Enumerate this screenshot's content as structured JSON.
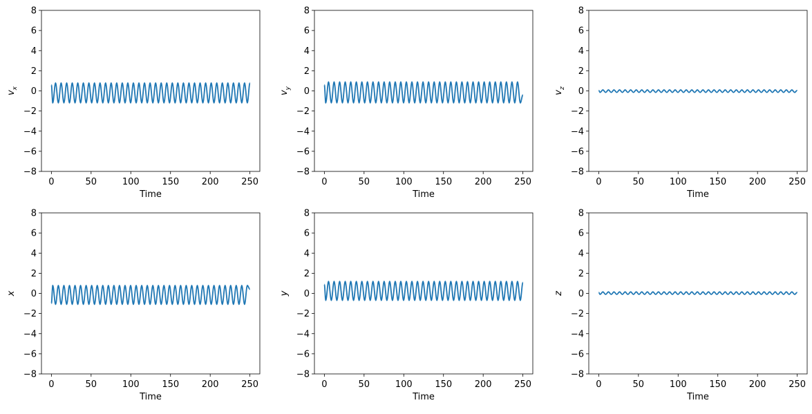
{
  "chart_data": [
    {
      "type": "line",
      "xlabel": "Time",
      "ylabel": "v",
      "ylabel_sub": "x",
      "x": [
        0,
        1.75,
        5.25,
        8.75,
        12.25,
        15.75,
        19.25,
        22.75,
        26.25,
        29.75,
        33.25,
        36.75,
        40.25,
        43.75,
        47.25,
        50.75,
        54.25,
        57.75,
        61.25,
        64.75,
        68.25,
        71.75,
        75.25,
        78.75,
        82.25,
        85.75,
        89.25,
        92.75,
        96.25,
        99.75,
        103.25,
        106.75,
        110.25,
        113.75,
        117.25,
        120.75,
        124.25,
        127.75,
        131.25,
        134.75,
        138.25,
        141.75,
        145.25,
        148.75,
        152.25,
        155.75,
        159.25,
        162.75,
        166.25,
        169.75,
        173.25,
        176.75,
        180.25,
        183.75,
        187.25,
        190.75,
        194.25,
        197.75,
        201.25,
        204.75,
        208.25,
        211.75,
        215.25,
        218.75,
        222.25,
        225.75,
        229.25,
        232.75,
        236.25,
        239.75,
        243.25,
        246.75,
        250
      ],
      "series": [
        {
          "color": "#1f77b4",
          "values": [
            0.6,
            -1.2,
            0.8,
            -1.2,
            0.8,
            -1.2,
            0.8,
            -1.2,
            0.8,
            -1.2,
            0.8,
            -1.2,
            0.8,
            -1.2,
            0.8,
            -1.2,
            0.8,
            -1.2,
            0.8,
            -1.2,
            0.8,
            -1.2,
            0.8,
            -1.2,
            0.8,
            -1.2,
            0.8,
            -1.2,
            0.8,
            -1.2,
            0.8,
            -1.2,
            0.8,
            -1.2,
            0.8,
            -1.2,
            0.8,
            -1.2,
            0.8,
            -1.2,
            0.8,
            -1.2,
            0.8,
            -1.2,
            0.8,
            -1.2,
            0.8,
            -1.2,
            0.8,
            -1.2,
            0.8,
            -1.2,
            0.8,
            -1.2,
            0.8,
            -1.2,
            0.8,
            -1.2,
            0.8,
            -1.2,
            0.8,
            -1.2,
            0.8,
            -1.2,
            0.8,
            -1.2,
            0.8,
            -1.2,
            0.8,
            -1.2,
            0.8,
            -1.2,
            0.8
          ]
        }
      ],
      "xlim": [
        -12.5,
        262.5
      ],
      "xticks": [
        0,
        50,
        100,
        150,
        200,
        250
      ],
      "ylim": [
        -8,
        8
      ],
      "yticks": [
        {
          "value": -8,
          "label": "−8"
        },
        {
          "value": -6,
          "label": "−6"
        },
        {
          "value": -4,
          "label": "−4"
        },
        {
          "value": -2,
          "label": "−2"
        },
        0,
        2,
        4,
        6,
        8
      ]
    },
    {
      "type": "line",
      "xlabel": "Time",
      "ylabel": "v",
      "ylabel_sub": "y",
      "x": [
        0,
        1.75,
        5.25,
        8.75,
        12.25,
        15.75,
        19.25,
        22.75,
        26.25,
        29.75,
        33.25,
        36.75,
        40.25,
        43.75,
        47.25,
        50.75,
        54.25,
        57.75,
        61.25,
        64.75,
        68.25,
        71.75,
        75.25,
        78.75,
        82.25,
        85.75,
        89.25,
        92.75,
        96.25,
        99.75,
        103.25,
        106.75,
        110.25,
        113.75,
        117.25,
        120.75,
        124.25,
        127.75,
        131.25,
        134.75,
        138.25,
        141.75,
        145.25,
        148.75,
        152.25,
        155.75,
        159.25,
        162.75,
        166.25,
        169.75,
        173.25,
        176.75,
        180.25,
        183.75,
        187.25,
        190.75,
        194.25,
        197.75,
        201.25,
        204.75,
        208.25,
        211.75,
        215.25,
        218.75,
        222.25,
        225.75,
        229.25,
        232.75,
        236.25,
        239.75,
        243.25,
        246.75,
        250
      ],
      "series": [
        {
          "color": "#1f77b4",
          "values": [
            0.6,
            -1.2,
            0.9,
            -1.2,
            0.9,
            -1.2,
            0.9,
            -1.2,
            0.9,
            -1.2,
            0.9,
            -1.2,
            0.9,
            -1.2,
            0.9,
            -1.2,
            0.9,
            -1.2,
            0.9,
            -1.2,
            0.9,
            -1.2,
            0.9,
            -1.2,
            0.9,
            -1.2,
            0.9,
            -1.2,
            0.9,
            -1.2,
            0.9,
            -1.2,
            0.9,
            -1.2,
            0.9,
            -1.2,
            0.9,
            -1.2,
            0.9,
            -1.2,
            0.9,
            -1.2,
            0.9,
            -1.2,
            0.9,
            -1.2,
            0.9,
            -1.2,
            0.9,
            -1.2,
            0.9,
            -1.2,
            0.9,
            -1.2,
            0.9,
            -1.2,
            0.9,
            -1.2,
            0.9,
            -1.2,
            0.9,
            -1.2,
            0.9,
            -1.2,
            0.9,
            -1.2,
            0.9,
            -1.2,
            0.9,
            -1.2,
            0.9,
            -1.2,
            -0.4
          ]
        }
      ],
      "xlim": [
        -12.5,
        262.5
      ],
      "xticks": [
        0,
        50,
        100,
        150,
        200,
        250
      ],
      "ylim": [
        -8,
        8
      ],
      "yticks": [
        {
          "value": -8,
          "label": "−8"
        },
        {
          "value": -6,
          "label": "−6"
        },
        {
          "value": -4,
          "label": "−4"
        },
        {
          "value": -2,
          "label": "−2"
        },
        0,
        2,
        4,
        6,
        8
      ]
    },
    {
      "type": "line",
      "xlabel": "Time",
      "ylabel": "v",
      "ylabel_sub": "z",
      "x": [
        0,
        1.75,
        5.25,
        8.75,
        12.25,
        15.75,
        19.25,
        22.75,
        26.25,
        29.75,
        33.25,
        36.75,
        40.25,
        43.75,
        47.25,
        50.75,
        54.25,
        57.75,
        61.25,
        64.75,
        68.25,
        71.75,
        75.25,
        78.75,
        82.25,
        85.75,
        89.25,
        92.75,
        96.25,
        99.75,
        103.25,
        106.75,
        110.25,
        113.75,
        117.25,
        120.75,
        124.25,
        127.75,
        131.25,
        134.75,
        138.25,
        141.75,
        145.25,
        148.75,
        152.25,
        155.75,
        159.25,
        162.75,
        166.25,
        169.75,
        173.25,
        176.75,
        180.25,
        183.75,
        187.25,
        190.75,
        194.25,
        197.75,
        201.25,
        204.75,
        208.25,
        211.75,
        215.25,
        218.75,
        222.25,
        225.75,
        229.25,
        232.75,
        236.25,
        239.75,
        243.25,
        246.75,
        250
      ],
      "series": [
        {
          "color": "#1f77b4",
          "values": [
            0.05,
            -0.15,
            0.1,
            -0.15,
            0.1,
            -0.15,
            0.1,
            -0.15,
            0.1,
            -0.15,
            0.1,
            -0.15,
            0.1,
            -0.15,
            0.1,
            -0.15,
            0.1,
            -0.15,
            0.1,
            -0.15,
            0.1,
            -0.15,
            0.1,
            -0.15,
            0.1,
            -0.15,
            0.1,
            -0.15,
            0.1,
            -0.15,
            0.1,
            -0.15,
            0.1,
            -0.15,
            0.1,
            -0.15,
            0.1,
            -0.15,
            0.1,
            -0.15,
            0.1,
            -0.15,
            0.1,
            -0.15,
            0.1,
            -0.15,
            0.1,
            -0.15,
            0.1,
            -0.15,
            0.1,
            -0.15,
            0.1,
            -0.15,
            0.1,
            -0.15,
            0.1,
            -0.15,
            0.1,
            -0.15,
            0.1,
            -0.15,
            0.1,
            -0.15,
            0.1,
            -0.15,
            0.1,
            -0.15,
            0.1,
            -0.15,
            0.1,
            -0.15,
            0.05
          ]
        }
      ],
      "xlim": [
        -12.5,
        262.5
      ],
      "xticks": [
        0,
        50,
        100,
        150,
        200,
        250
      ],
      "ylim": [
        -8,
        8
      ],
      "yticks": [
        {
          "value": -8,
          "label": "−8"
        },
        {
          "value": -6,
          "label": "−6"
        },
        {
          "value": -4,
          "label": "−4"
        },
        {
          "value": -2,
          "label": "−2"
        },
        0,
        2,
        4,
        6,
        8
      ]
    },
    {
      "type": "line",
      "xlabel": "Time",
      "ylabel": "x",
      "x": [
        0,
        1.75,
        5.25,
        8.75,
        12.25,
        15.75,
        19.25,
        22.75,
        26.25,
        29.75,
        33.25,
        36.75,
        40.25,
        43.75,
        47.25,
        50.75,
        54.25,
        57.75,
        61.25,
        64.75,
        68.25,
        71.75,
        75.25,
        78.75,
        82.25,
        85.75,
        89.25,
        92.75,
        96.25,
        99.75,
        103.25,
        106.75,
        110.25,
        113.75,
        117.25,
        120.75,
        124.25,
        127.75,
        131.25,
        134.75,
        138.25,
        141.75,
        145.25,
        148.75,
        152.25,
        155.75,
        159.25,
        162.75,
        166.25,
        169.75,
        173.25,
        176.75,
        180.25,
        183.75,
        187.25,
        190.75,
        194.25,
        197.75,
        201.25,
        204.75,
        208.25,
        211.75,
        215.25,
        218.75,
        222.25,
        225.75,
        229.25,
        232.75,
        236.25,
        239.75,
        243.25,
        246.75,
        250
      ],
      "series": [
        {
          "color": "#1f77b4",
          "values": [
            -1.0,
            0.8,
            -1.1,
            0.8,
            -1.1,
            0.8,
            -1.1,
            0.8,
            -1.1,
            0.8,
            -1.1,
            0.8,
            -1.1,
            0.8,
            -1.1,
            0.8,
            -1.1,
            0.8,
            -1.1,
            0.8,
            -1.1,
            0.8,
            -1.1,
            0.8,
            -1.1,
            0.8,
            -1.1,
            0.8,
            -1.1,
            0.8,
            -1.1,
            0.8,
            -1.1,
            0.8,
            -1.1,
            0.8,
            -1.1,
            0.8,
            -1.1,
            0.8,
            -1.1,
            0.8,
            -1.1,
            0.8,
            -1.1,
            0.8,
            -1.1,
            0.8,
            -1.1,
            0.8,
            -1.1,
            0.8,
            -1.1,
            0.8,
            -1.1,
            0.8,
            -1.1,
            0.8,
            -1.1,
            0.8,
            -1.1,
            0.8,
            -1.1,
            0.8,
            -1.1,
            0.8,
            -1.1,
            0.8,
            -1.1,
            0.8,
            -1.1,
            0.8,
            0.4
          ]
        }
      ],
      "xlim": [
        -12.5,
        262.5
      ],
      "xticks": [
        0,
        50,
        100,
        150,
        200,
        250
      ],
      "ylim": [
        -8,
        8
      ],
      "yticks": [
        {
          "value": -8,
          "label": "−8"
        },
        {
          "value": -6,
          "label": "−6"
        },
        {
          "value": -4,
          "label": "−4"
        },
        {
          "value": -2,
          "label": "−2"
        },
        0,
        2,
        4,
        6,
        8
      ]
    },
    {
      "type": "line",
      "xlabel": "Time",
      "ylabel": "y",
      "x": [
        0,
        1.75,
        5.25,
        8.75,
        12.25,
        15.75,
        19.25,
        22.75,
        26.25,
        29.75,
        33.25,
        36.75,
        40.25,
        43.75,
        47.25,
        50.75,
        54.25,
        57.75,
        61.25,
        64.75,
        68.25,
        71.75,
        75.25,
        78.75,
        82.25,
        85.75,
        89.25,
        92.75,
        96.25,
        99.75,
        103.25,
        106.75,
        110.25,
        113.75,
        117.25,
        120.75,
        124.25,
        127.75,
        131.25,
        134.75,
        138.25,
        141.75,
        145.25,
        148.75,
        152.25,
        155.75,
        159.25,
        162.75,
        166.25,
        169.75,
        173.25,
        176.75,
        180.25,
        183.75,
        187.25,
        190.75,
        194.25,
        197.75,
        201.25,
        204.75,
        208.25,
        211.75,
        215.25,
        218.75,
        222.25,
        225.75,
        229.25,
        232.75,
        236.25,
        239.75,
        243.25,
        246.75,
        250
      ],
      "series": [
        {
          "color": "#1f77b4",
          "values": [
            0.9,
            -0.7,
            1.2,
            -0.7,
            1.2,
            -0.7,
            1.2,
            -0.7,
            1.2,
            -0.7,
            1.2,
            -0.7,
            1.2,
            -0.7,
            1.2,
            -0.7,
            1.2,
            -0.7,
            1.2,
            -0.7,
            1.2,
            -0.7,
            1.2,
            -0.7,
            1.2,
            -0.7,
            1.2,
            -0.7,
            1.2,
            -0.7,
            1.2,
            -0.7,
            1.2,
            -0.7,
            1.2,
            -0.7,
            1.2,
            -0.7,
            1.2,
            -0.7,
            1.2,
            -0.7,
            1.2,
            -0.7,
            1.2,
            -0.7,
            1.2,
            -0.7,
            1.2,
            -0.7,
            1.2,
            -0.7,
            1.2,
            -0.7,
            1.2,
            -0.7,
            1.2,
            -0.7,
            1.2,
            -0.7,
            1.2,
            -0.7,
            1.2,
            -0.7,
            1.2,
            -0.7,
            1.2,
            -0.7,
            1.2,
            -0.7,
            1.2,
            -0.7,
            1.1
          ]
        }
      ],
      "xlim": [
        -12.5,
        262.5
      ],
      "xticks": [
        0,
        50,
        100,
        150,
        200,
        250
      ],
      "ylim": [
        -8,
        8
      ],
      "yticks": [
        {
          "value": -8,
          "label": "−8"
        },
        {
          "value": -6,
          "label": "−6"
        },
        {
          "value": -4,
          "label": "−4"
        },
        {
          "value": -2,
          "label": "−2"
        },
        0,
        2,
        4,
        6,
        8
      ]
    },
    {
      "type": "line",
      "xlabel": "Time",
      "ylabel": "z",
      "x": [
        0,
        1.75,
        5.25,
        8.75,
        12.25,
        15.75,
        19.25,
        22.75,
        26.25,
        29.75,
        33.25,
        36.75,
        40.25,
        43.75,
        47.25,
        50.75,
        54.25,
        57.75,
        61.25,
        64.75,
        68.25,
        71.75,
        75.25,
        78.75,
        82.25,
        85.75,
        89.25,
        92.75,
        96.25,
        99.75,
        103.25,
        106.75,
        110.25,
        113.75,
        117.25,
        120.75,
        124.25,
        127.75,
        131.25,
        134.75,
        138.25,
        141.75,
        145.25,
        148.75,
        152.25,
        155.75,
        159.25,
        162.75,
        166.25,
        169.75,
        173.25,
        176.75,
        180.25,
        183.75,
        187.25,
        190.75,
        194.25,
        197.75,
        201.25,
        204.75,
        208.25,
        211.75,
        215.25,
        218.75,
        222.25,
        225.75,
        229.25,
        232.75,
        236.25,
        239.75,
        243.25,
        246.75,
        250
      ],
      "series": [
        {
          "color": "#1f77b4",
          "values": [
            0.1,
            -0.1,
            0.15,
            -0.1,
            0.15,
            -0.1,
            0.15,
            -0.1,
            0.15,
            -0.1,
            0.15,
            -0.1,
            0.15,
            -0.1,
            0.15,
            -0.1,
            0.15,
            -0.1,
            0.15,
            -0.1,
            0.15,
            -0.1,
            0.15,
            -0.1,
            0.15,
            -0.1,
            0.15,
            -0.1,
            0.15,
            -0.1,
            0.15,
            -0.1,
            0.15,
            -0.1,
            0.15,
            -0.1,
            0.15,
            -0.1,
            0.15,
            -0.1,
            0.15,
            -0.1,
            0.15,
            -0.1,
            0.15,
            -0.1,
            0.15,
            -0.1,
            0.15,
            -0.1,
            0.15,
            -0.1,
            0.15,
            -0.1,
            0.15,
            -0.1,
            0.15,
            -0.1,
            0.15,
            -0.1,
            0.15,
            -0.1,
            0.15,
            -0.1,
            0.15,
            -0.1,
            0.15,
            -0.1,
            0.15,
            -0.1,
            0.15,
            -0.1,
            0.1
          ]
        }
      ],
      "xlim": [
        -12.5,
        262.5
      ],
      "xticks": [
        0,
        50,
        100,
        150,
        200,
        250
      ],
      "ylim": [
        -8,
        8
      ],
      "yticks": [
        {
          "value": -8,
          "label": "−8"
        },
        {
          "value": -6,
          "label": "−6"
        },
        {
          "value": -4,
          "label": "−4"
        },
        {
          "value": -2,
          "label": "−2"
        },
        0,
        2,
        4,
        6,
        8
      ]
    }
  ]
}
